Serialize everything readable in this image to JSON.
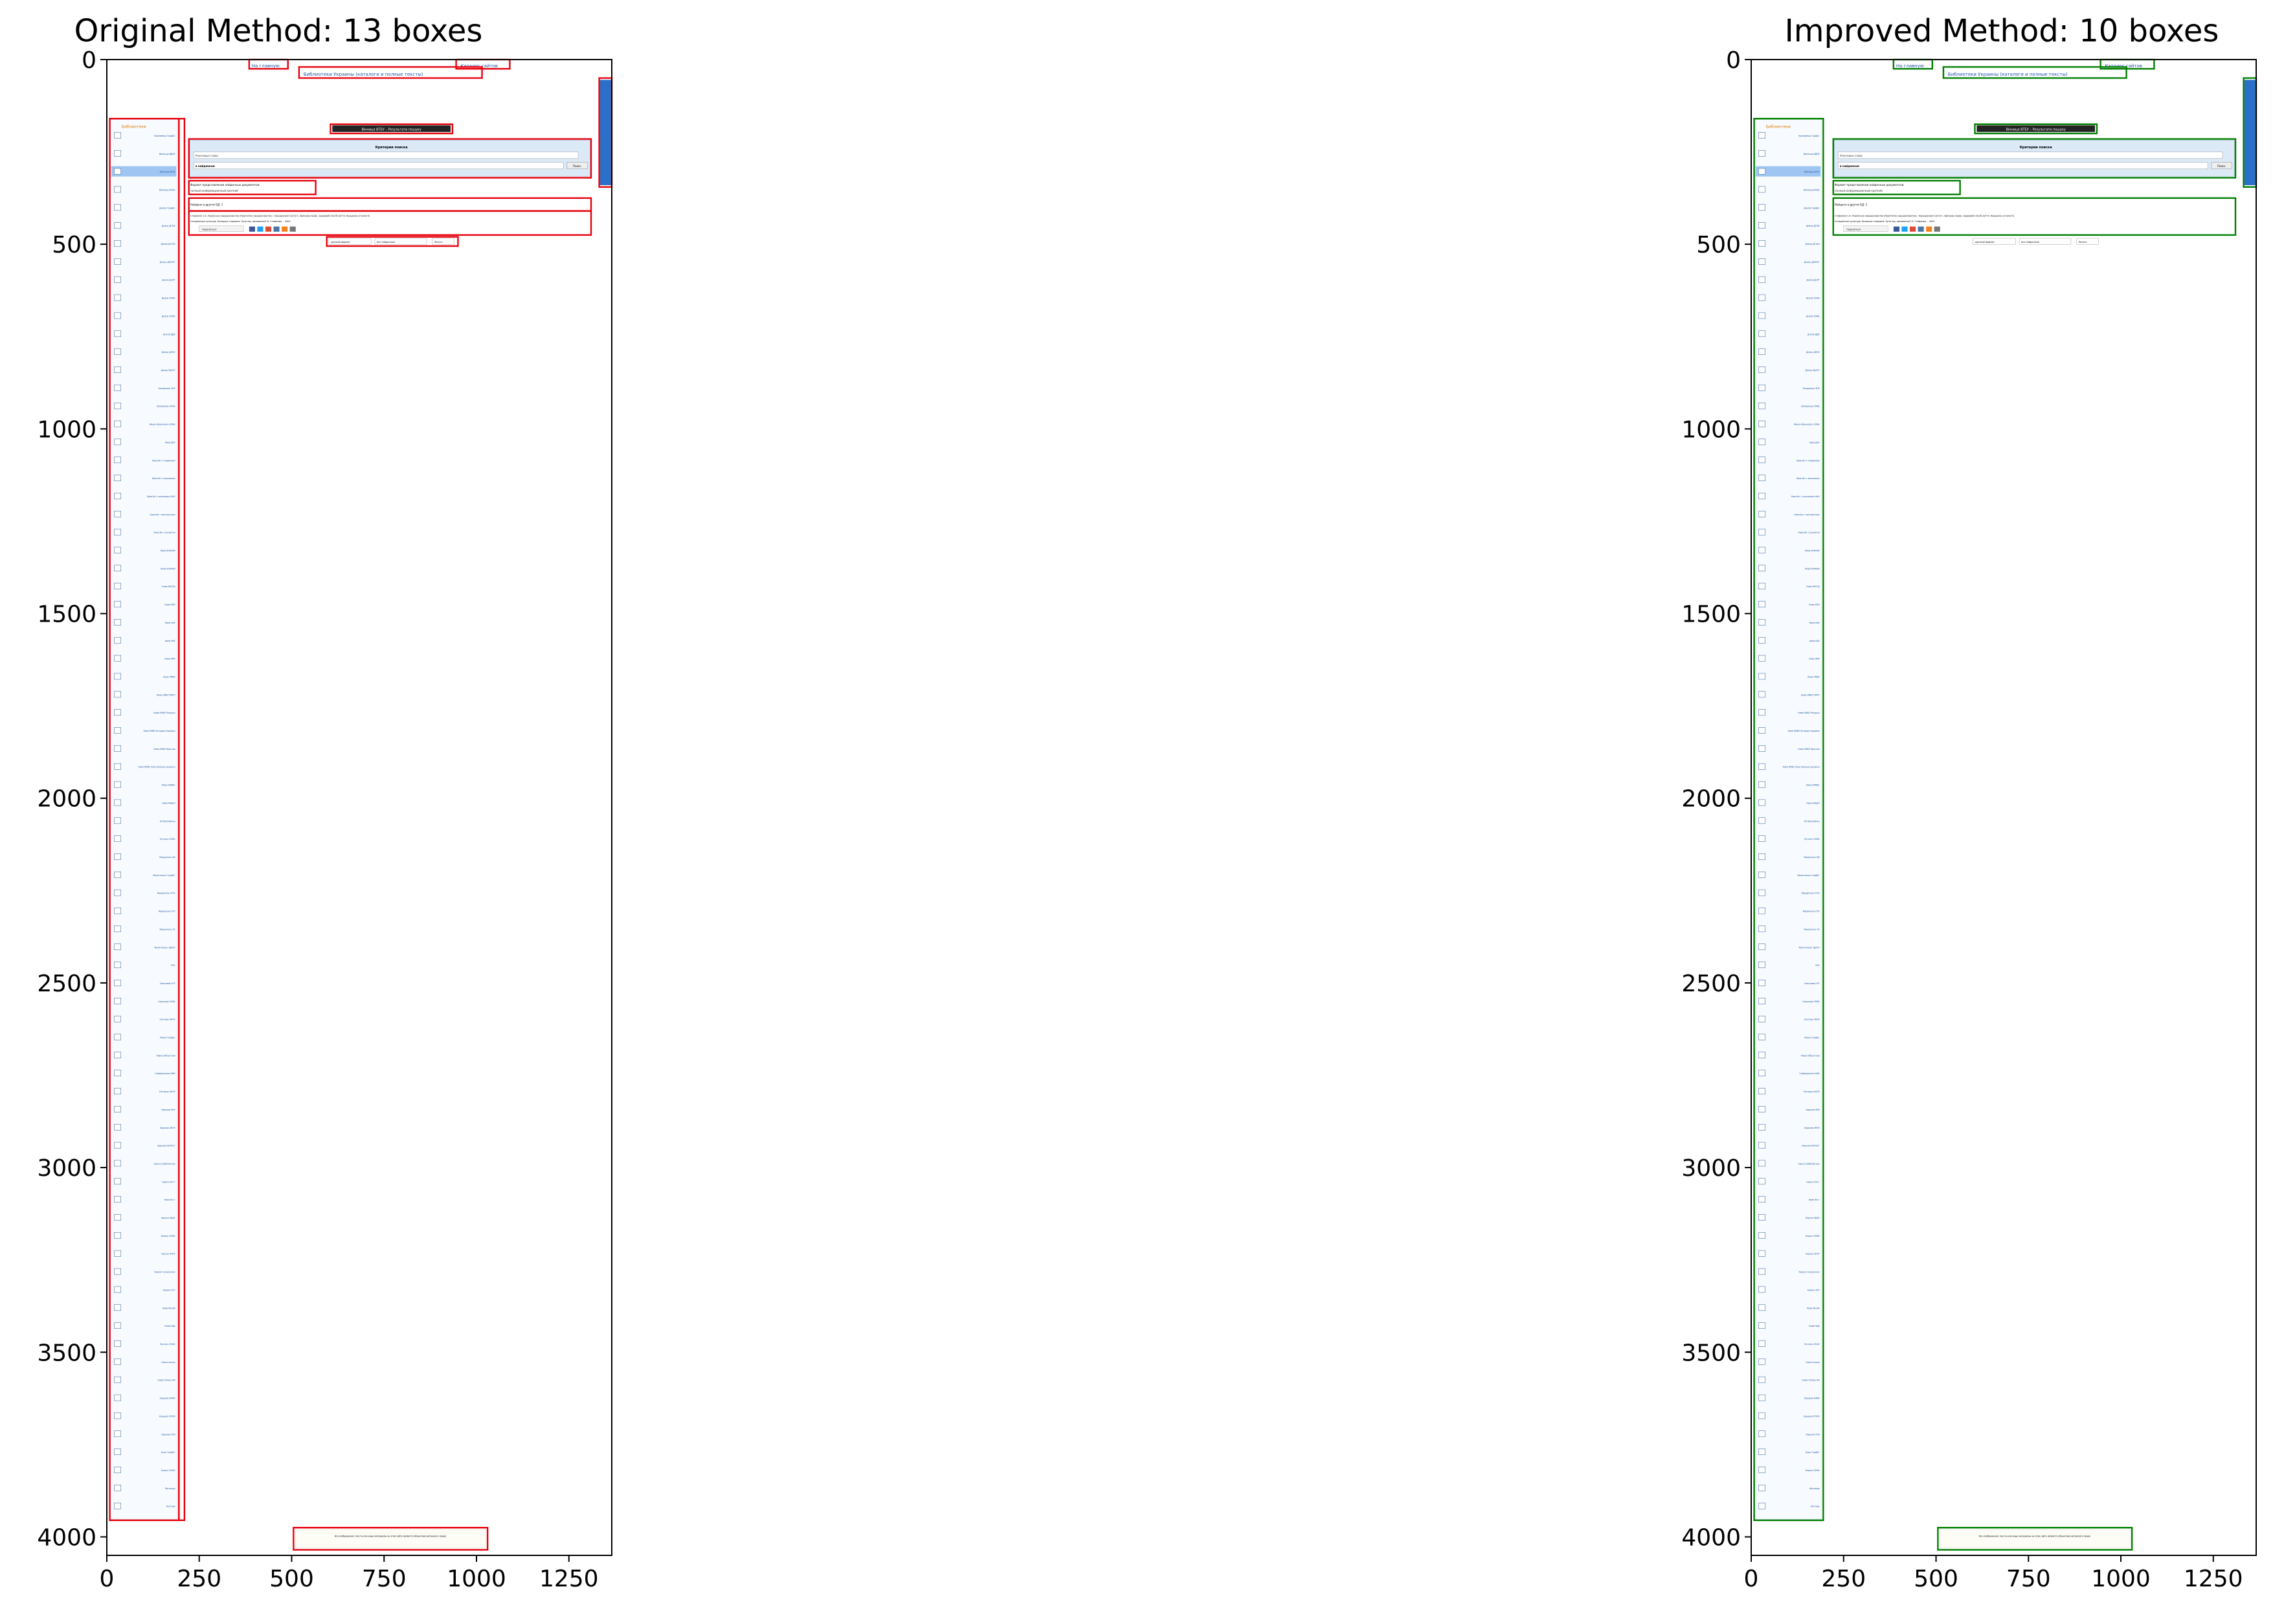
{
  "chart_data": [
    {
      "type": "annotated-screenshot",
      "title": "Original Method: 13 boxes",
      "box_color": "#e8000b",
      "xlim": [
        0,
        1366
      ],
      "ylim": [
        4050,
        0
      ],
      "xticks": [
        0,
        250,
        500,
        750,
        1000,
        1250
      ],
      "yticks": [
        0,
        500,
        1000,
        1500,
        2000,
        2500,
        3000,
        3500,
        4000
      ],
      "boxes": [
        {
          "x0": 385,
          "y0": 0,
          "x1": 490,
          "y1": 25
        },
        {
          "x0": 520,
          "y0": 20,
          "x1": 1015,
          "y1": 50
        },
        {
          "x0": 945,
          "y0": 0,
          "x1": 1090,
          "y1": 25
        },
        {
          "x0": 1332,
          "y0": 50,
          "x1": 1366,
          "y1": 345
        },
        {
          "x0": 8,
          "y0": 160,
          "x1": 195,
          "y1": 3955
        },
        {
          "x0": 605,
          "y0": 175,
          "x1": 935,
          "y1": 200
        },
        {
          "x0": 222,
          "y0": 215,
          "x1": 1310,
          "y1": 320
        },
        {
          "x0": 222,
          "y0": 328,
          "x1": 565,
          "y1": 365
        },
        {
          "x0": 222,
          "y0": 375,
          "x1": 1310,
          "y1": 410
        },
        {
          "x0": 222,
          "y0": 410,
          "x1": 1310,
          "y1": 475
        },
        {
          "x0": 595,
          "y0": 480,
          "x1": 950,
          "y1": 505
        },
        {
          "x0": 505,
          "y0": 3975,
          "x1": 1030,
          "y1": 4035
        },
        {
          "x0": 195,
          "y0": 160,
          "x1": 210,
          "y1": 3955
        }
      ]
    },
    {
      "type": "annotated-screenshot",
      "title": "Improved Method: 10 boxes",
      "box_color": "#007f00",
      "xlim": [
        0,
        1366
      ],
      "ylim": [
        4050,
        0
      ],
      "xticks": [
        0,
        250,
        500,
        750,
        1000,
        1250
      ],
      "yticks": [
        0,
        500,
        1000,
        1500,
        2000,
        2500,
        3000,
        3500,
        4000
      ],
      "boxes": [
        {
          "x0": 385,
          "y0": 0,
          "x1": 490,
          "y1": 25
        },
        {
          "x0": 520,
          "y0": 20,
          "x1": 1015,
          "y1": 50
        },
        {
          "x0": 945,
          "y0": 0,
          "x1": 1090,
          "y1": 25
        },
        {
          "x0": 1332,
          "y0": 50,
          "x1": 1366,
          "y1": 345
        },
        {
          "x0": 8,
          "y0": 160,
          "x1": 195,
          "y1": 3955
        },
        {
          "x0": 605,
          "y0": 175,
          "x1": 935,
          "y1": 200
        },
        {
          "x0": 222,
          "y0": 215,
          "x1": 1310,
          "y1": 320
        },
        {
          "x0": 222,
          "y0": 328,
          "x1": 565,
          "y1": 365
        },
        {
          "x0": 222,
          "y0": 375,
          "x1": 1310,
          "y1": 475
        },
        {
          "x0": 505,
          "y0": 3975,
          "x1": 1030,
          "y1": 4035
        }
      ]
    }
  ],
  "screenshot": {
    "header_links": [
      "На главную",
      "Библиотеки Украины (каталоги и полные тексты)",
      "Каталог сайтов"
    ],
    "results_title": "Вінниця ВТЕУ – Результати пошуку",
    "search_heading": "Критерии поиска",
    "search_field": "Ключевые слова",
    "search_scope": "в найденном",
    "search_button": "Поиск",
    "format_label": "Формат представления найденных документов:",
    "format_options": [
      "полный",
      "информационный",
      "краткий"
    ],
    "found_label": "Найдено в других БД: 1",
    "record_text": "Стефанюк С.К. Українське народознавство (Практичне народознавство) : Народознавчі світогл. Звичаєве право. Здоровий спосіб життя. Крашанка етнологія. Селядянська культура. Козацька старшина. Зупи нау, виховання/С.К. Стефанюк. – 2003",
    "share_label": "Поделиться",
    "bottom_controls": [
      "краткий формат",
      "все найденные",
      "Печать"
    ],
    "sidebar_heading": "Библиотеки",
    "sidebar_items": [
      "Кропивниц ГорЦБС",
      "Винница ВДПУ",
      "Винница ВТЕУ",
      "Винница ВОНБ",
      "Днепр ГорЦБС",
      "Днепр ДГМУ",
      "Днепр ДГУАЗ",
      "Днепр ДНУЖТ",
      "Днепр ДНУТ",
      "Днепр ОУНБ",
      "Днепр ОУНБ",
      "Днепр ДДУ",
      "Днепр ДЛНУ",
      "Днепр УДХТУ",
      "Запорожье ЗНУ",
      "Запорожье ОУНБ",
      "Ивано-Франковск ОУНБ",
      "Киев ДАУ",
      "Киев Ин-т геофизики",
      "Киев Ин-т экономики",
      "Киев Ин-т экономики НАН",
      "Киев Ин-т лингвистики",
      "Киев Ин-т развития",
      "Киев КНУКиМ",
      "Киев КНУКиИ",
      "Киев КНУТД",
      "Киев КПИ",
      "Киев НАУ",
      "Киев НБУ",
      "Киев НМУ",
      "Киев НМБУ",
      "Киев НМБУ ПКРО",
      "Киев НМБУ Ресурсы",
      "Киев НМБУ История Украины",
      "Киев НМБУ Ярослав",
      "Киев НМБУ Электронные ресурсы",
      "Киев НУФВС",
      "Киев НУБиП",
      "КЗ Кропивниц",
      "Луганск ОУНБ",
      "Мариуполь ПД",
      "Мелитополь ГорЦБС",
      "Мариуполь ПГТУ",
      "Мариуполь ПГУ",
      "Мариуполь ОУ",
      "Мелитополь ТДАТУ",
      "РСК",
      "Николаев НГУ",
      "Николаев ОУНБ",
      "Полтава ПНПУ",
      "Ровно ГорЦБС",
      "Ровно Областная",
      "Симферополь КФУ",
      "Ужгород УжНУ",
      "Харьков ХНУ",
      "Харьков ХНПУ",
      "Харьков ХНТУСГ",
      "Одесса Библиотека",
      "Одесса Ин-т",
      "Киев Ин-т",
      "Херсон ХДАУ",
      "Херсон ОУНБ",
      "Херсон ХНТУ",
      "Херсон Сельскохоз",
      "Херсон ХГУ",
      "Киев Музей",
      "Киев НАД",
      "Луганск ЛНАУ",
      "Севастополь",
      "Севастополь НИ",
      "Харьков ХНМУ",
      "Харьков ХТУРЭ",
      "Харьков ХТИ",
      "Луцк ГорЦБС",
      "Херсон ОУНБ",
      "Житомир",
      "Полтава"
    ],
    "footer_text": "Все изображения, тексты или иные материалы на этом сайте являются объектами авторского права"
  }
}
